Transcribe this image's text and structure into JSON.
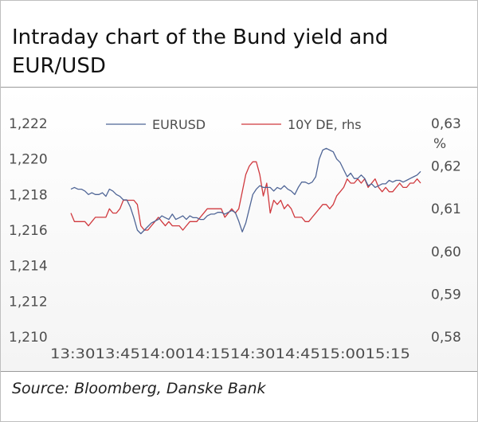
{
  "page": {
    "title": "Intraday chart of the Bund yield and EUR/USD",
    "source": "Source: Bloomberg, Danske Bank"
  },
  "chart_data": {
    "type": "line",
    "x_tick_labels": [
      "13:30",
      "13:45",
      "14:00",
      "14:15",
      "14:30",
      "14:45",
      "15:00",
      "15:15"
    ],
    "x_range": [
      0,
      100
    ],
    "y_left": {
      "range": [
        1.21,
        1.222
      ],
      "ticks": [
        "1,222",
        "1,220",
        "1,218",
        "1,216",
        "1,214",
        "1,212",
        "1,210"
      ]
    },
    "y_right": {
      "range": [
        0.58,
        0.63
      ],
      "ticks": [
        "0,63",
        "0,62",
        "0,61",
        "0,60",
        "0,59",
        "0,58"
      ],
      "unit": "%"
    },
    "legend_position": "top",
    "series": [
      {
        "name": "EURUSD",
        "axis": "left",
        "color": "#4f6596",
        "x": [
          0,
          1,
          2,
          3,
          4,
          5,
          6,
          7,
          8,
          9,
          10,
          11,
          12,
          13,
          14,
          15,
          16,
          17,
          18,
          19,
          20,
          21,
          22,
          23,
          24,
          25,
          26,
          27,
          28,
          29,
          30,
          31,
          32,
          33,
          34,
          35,
          36,
          37,
          38,
          39,
          40,
          41,
          42,
          43,
          44,
          45,
          46,
          47,
          48,
          49,
          50,
          51,
          52,
          53,
          54,
          55,
          56,
          57,
          58,
          59,
          60,
          61,
          62,
          63,
          64,
          65,
          66,
          67,
          68,
          69,
          70,
          71,
          72,
          73,
          74,
          75,
          76,
          77,
          78,
          79,
          80,
          81,
          82,
          83,
          84,
          85,
          86,
          87,
          88,
          89,
          90,
          91,
          92,
          93,
          94,
          95,
          96,
          97,
          98,
          99,
          100
        ],
        "values": [
          1.2183,
          1.2184,
          1.2183,
          1.2183,
          1.2182,
          1.218,
          1.2181,
          1.218,
          1.218,
          1.2181,
          1.2179,
          1.2183,
          1.2182,
          1.218,
          1.2179,
          1.2177,
          1.2177,
          1.2173,
          1.2167,
          1.216,
          1.2158,
          1.216,
          1.2162,
          1.2164,
          1.2165,
          1.2166,
          1.2168,
          1.2167,
          1.2166,
          1.2169,
          1.2166,
          1.2167,
          1.2168,
          1.2166,
          1.2168,
          1.2167,
          1.2167,
          1.2166,
          1.2166,
          1.2168,
          1.2169,
          1.2169,
          1.217,
          1.217,
          1.2169,
          1.217,
          1.2171,
          1.217,
          1.2165,
          1.2159,
          1.2164,
          1.2172,
          1.218,
          1.2183,
          1.2185,
          1.2184,
          1.2184,
          1.2184,
          1.2182,
          1.2184,
          1.2183,
          1.2185,
          1.2183,
          1.2182,
          1.218,
          1.2184,
          1.2187,
          1.2187,
          1.2186,
          1.2187,
          1.219,
          1.22,
          1.2205,
          1.2206,
          1.2205,
          1.2204,
          1.22,
          1.2198,
          1.2194,
          1.219,
          1.2192,
          1.2189,
          1.2189,
          1.2191,
          1.2189,
          1.2185,
          1.2186,
          1.2184,
          1.2185,
          1.2186,
          1.2186,
          1.2188,
          1.2187,
          1.2188,
          1.2188,
          1.2187,
          1.2188,
          1.2189,
          1.219,
          1.2191,
          1.2193
        ]
      },
      {
        "name": "10Y DE, rhs",
        "axis": "right",
        "color": "#d0393e",
        "x": [
          0,
          1,
          2,
          3,
          4,
          5,
          6,
          7,
          8,
          9,
          10,
          11,
          12,
          13,
          14,
          15,
          16,
          17,
          18,
          19,
          20,
          21,
          22,
          23,
          24,
          25,
          26,
          27,
          28,
          29,
          30,
          31,
          32,
          33,
          34,
          35,
          36,
          37,
          38,
          39,
          40,
          41,
          42,
          43,
          44,
          45,
          46,
          47,
          48,
          49,
          50,
          51,
          52,
          53,
          54,
          55,
          56,
          57,
          58,
          59,
          60,
          61,
          62,
          63,
          64,
          65,
          66,
          67,
          68,
          69,
          70,
          71,
          72,
          73,
          74,
          75,
          76,
          77,
          78,
          79,
          80,
          81,
          82,
          83,
          84,
          85,
          86,
          87,
          88,
          89,
          90,
          91,
          92,
          93,
          94,
          95,
          96,
          97,
          98,
          99,
          100
        ],
        "values": [
          0.609,
          0.607,
          0.607,
          0.607,
          0.607,
          0.606,
          0.607,
          0.608,
          0.608,
          0.608,
          0.608,
          0.61,
          0.609,
          0.609,
          0.61,
          0.612,
          0.612,
          0.612,
          0.612,
          0.611,
          0.606,
          0.605,
          0.605,
          0.606,
          0.607,
          0.608,
          0.607,
          0.606,
          0.607,
          0.606,
          0.606,
          0.606,
          0.605,
          0.606,
          0.607,
          0.607,
          0.607,
          0.608,
          0.609,
          0.61,
          0.61,
          0.61,
          0.61,
          0.61,
          0.608,
          0.609,
          0.61,
          0.609,
          0.61,
          0.614,
          0.618,
          0.62,
          0.621,
          0.621,
          0.618,
          0.613,
          0.616,
          0.609,
          0.612,
          0.611,
          0.612,
          0.61,
          0.611,
          0.61,
          0.608,
          0.608,
          0.608,
          0.607,
          0.607,
          0.608,
          0.609,
          0.61,
          0.611,
          0.611,
          0.61,
          0.611,
          0.613,
          0.614,
          0.615,
          0.617,
          0.616,
          0.616,
          0.617,
          0.616,
          0.617,
          0.615,
          0.616,
          0.617,
          0.615,
          0.614,
          0.615,
          0.614,
          0.614,
          0.615,
          0.616,
          0.615,
          0.615,
          0.616,
          0.616,
          0.617,
          0.616
        ]
      }
    ]
  }
}
